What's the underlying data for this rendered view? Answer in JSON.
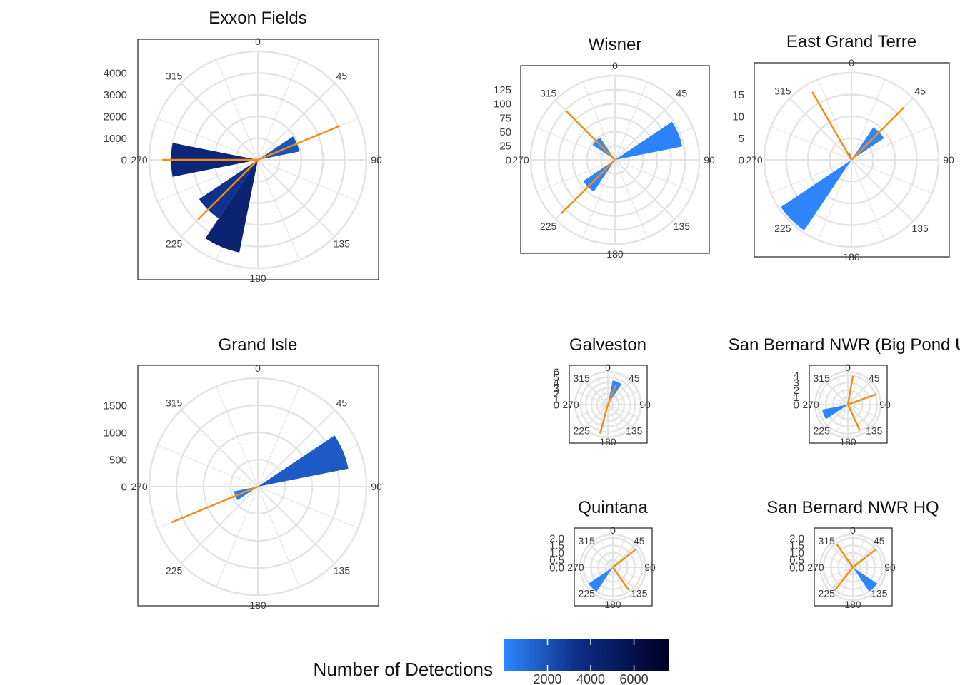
{
  "colors": {
    "bar_low": "#2E86FF",
    "bar_high": "#000022",
    "reference_line": "#F58C0D",
    "grid": "#e3e3e3",
    "frame": "#222222",
    "label": "#3a3a3a"
  },
  "legend": {
    "title": "Number of Detections",
    "tick_labels": [
      "2000",
      "4000",
      "6000"
    ],
    "ticks": [
      2000,
      4000,
      6000
    ],
    "range": [
      0,
      7600
    ]
  },
  "chart_data": [
    {
      "type": "polar-bar",
      "title": "Exxon Fields",
      "angle_ticks": [
        0,
        45,
        90,
        135,
        180,
        225,
        270,
        315
      ],
      "angle_tick_labels": [
        "0",
        "45",
        "90",
        "135",
        "180",
        "225",
        "270",
        "315"
      ],
      "radial_ticks": [
        0,
        1000,
        2000,
        3000,
        4000
      ],
      "radial_tick_labels": [
        "0",
        "1000",
        "2000",
        "3000",
        "4000"
      ],
      "rmax": 5000,
      "bars": [
        {
          "angle": 67.5,
          "count": 1950
        },
        {
          "angle": 202.5,
          "count": 4350
        },
        {
          "angle": 225,
          "count": 3250
        },
        {
          "angle": 270,
          "count": 4000
        }
      ],
      "reference_lines": [
        {
          "angle": 67.5,
          "length": 4100
        },
        {
          "angle": 225,
          "length": 3900
        },
        {
          "angle": 270,
          "length": 4400
        }
      ]
    },
    {
      "type": "polar-bar",
      "title": "Wisner",
      "angle_ticks": [
        0,
        45,
        90,
        135,
        180,
        225,
        270,
        315
      ],
      "angle_tick_labels": [
        "0",
        "45",
        "90",
        "135",
        "180",
        "225",
        "270",
        "315"
      ],
      "radial_ticks": [
        0,
        25,
        50,
        75,
        100,
        125
      ],
      "radial_tick_labels": [
        "0",
        "25",
        "50",
        "75",
        "100",
        "125"
      ],
      "rmax": 150,
      "bars": [
        {
          "angle": 67.5,
          "count": 122
        },
        {
          "angle": 225,
          "count": 68
        },
        {
          "angle": 315,
          "count": 48
        }
      ],
      "reference_lines": [
        {
          "angle": 225,
          "length": 135
        },
        {
          "angle": 315,
          "length": 124
        }
      ]
    },
    {
      "type": "polar-bar",
      "title": "East Grand Terre",
      "angle_ticks": [
        0,
        45,
        90,
        135,
        180,
        225,
        270,
        315
      ],
      "angle_tick_labels": [
        "0",
        "45",
        "90",
        "135",
        "180",
        "225",
        "270",
        "315"
      ],
      "radial_ticks": [
        0,
        5,
        10,
        15
      ],
      "radial_tick_labels": [
        "0",
        "5",
        "10",
        "15"
      ],
      "rmax": 20,
      "bars": [
        {
          "angle": 45,
          "count": 9
        },
        {
          "angle": 225,
          "count": 19.5
        },
        {
          "angle": 337.5,
          "count": 1.5
        }
      ],
      "reference_lines": [
        {
          "angle": 45,
          "length": 17
        },
        {
          "angle": 330,
          "length": 18
        }
      ]
    },
    {
      "type": "polar-bar",
      "title": "Grand Isle",
      "angle_ticks": [
        0,
        45,
        90,
        135,
        180,
        225,
        270,
        315
      ],
      "angle_tick_labels": [
        "0",
        "45",
        "90",
        "135",
        "180",
        "225",
        "270",
        "315"
      ],
      "radial_ticks": [
        0,
        500,
        1000,
        1500
      ],
      "radial_tick_labels": [
        "0",
        "500",
        "1000",
        "1500"
      ],
      "rmax": 2000,
      "bars": [
        {
          "angle": 67.5,
          "count": 1700
        },
        {
          "angle": 247.5,
          "count": 450
        }
      ],
      "reference_lines": [
        {
          "angle": 247.5,
          "length": 1720
        }
      ]
    },
    {
      "type": "polar-bar",
      "title": "Galveston",
      "angle_ticks": [
        0,
        45,
        90,
        135,
        180,
        225,
        270,
        315
      ],
      "angle_tick_labels": [
        "0",
        "45",
        "90",
        "135",
        "180",
        "225",
        "270",
        "315"
      ],
      "radial_ticks": [
        0,
        1,
        2,
        3,
        4,
        5,
        6
      ],
      "radial_tick_labels": [
        "0",
        "1",
        "2",
        "3",
        "4",
        "5",
        "6"
      ],
      "rmax": 6,
      "bars": [
        {
          "angle": 22.5,
          "count": 4.5
        }
      ],
      "reference_lines": [
        {
          "angle": 22.5,
          "length": 4
        },
        {
          "angle": 195,
          "length": 5.5
        }
      ]
    },
    {
      "type": "polar-bar",
      "title": "San Bernard NWR (Big Pond U",
      "angle_ticks": [
        0,
        45,
        90,
        135,
        180,
        225,
        270,
        315
      ],
      "angle_tick_labels": [
        "0",
        "45",
        "90",
        "135",
        "180",
        "225",
        "270",
        "315"
      ],
      "radial_ticks": [
        0,
        1,
        2,
        3,
        4
      ],
      "radial_tick_labels": [
        "0",
        "1",
        "2",
        "3",
        "4"
      ],
      "rmax": 4.5,
      "bars": [
        {
          "angle": 247.5,
          "count": 3.6
        }
      ],
      "reference_lines": [
        {
          "angle": 10,
          "length": 4
        },
        {
          "angle": 70,
          "length": 4.2
        },
        {
          "angle": 155,
          "length": 3.9
        }
      ]
    },
    {
      "type": "polar-bar",
      "title": "Quintana",
      "angle_ticks": [
        0,
        45,
        90,
        135,
        180,
        225,
        270,
        315
      ],
      "angle_tick_labels": [
        "0",
        "45",
        "90",
        "135",
        "180",
        "225",
        "270",
        "315"
      ],
      "radial_ticks": [
        0,
        0.5,
        1,
        1.5,
        2
      ],
      "radial_tick_labels": [
        "0.0",
        "0.5",
        "1.0",
        "1.5",
        "2.0"
      ],
      "rmax": 2.25,
      "bars": [
        {
          "angle": 225,
          "count": 2
        }
      ],
      "reference_lines": [
        {
          "angle": 52,
          "length": 2
        },
        {
          "angle": 145,
          "length": 1.9
        }
      ]
    },
    {
      "type": "polar-bar",
      "title": "San Bernard NWR HQ",
      "angle_ticks": [
        0,
        45,
        90,
        135,
        180,
        225,
        270,
        315
      ],
      "angle_tick_labels": [
        "0",
        "45",
        "90",
        "135",
        "180",
        "225",
        "270",
        "315"
      ],
      "radial_ticks": [
        0,
        0.5,
        1,
        1.5,
        2
      ],
      "radial_tick_labels": [
        "0.0",
        "0.5",
        "1.0",
        "1.5",
        "2.0"
      ],
      "rmax": 2.25,
      "bars": [
        {
          "angle": 135,
          "count": 2
        }
      ],
      "reference_lines": [
        {
          "angle": 52,
          "length": 2
        },
        {
          "angle": 218,
          "length": 2
        },
        {
          "angle": 325,
          "length": 1.9
        }
      ]
    }
  ]
}
